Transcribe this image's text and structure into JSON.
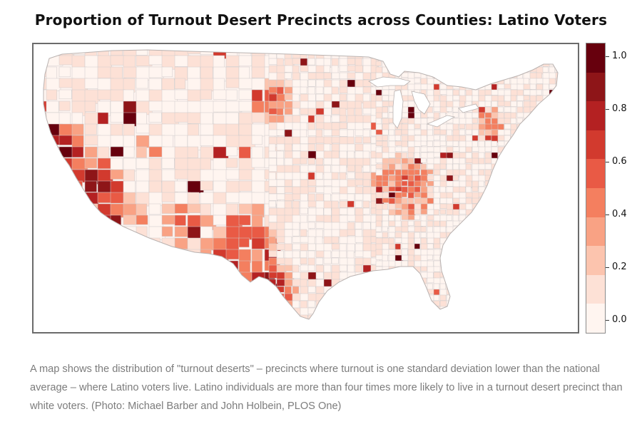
{
  "map": {
    "title": "Proportion of Turnout Desert Precincts across Counties: Latino Voters",
    "subject": "Contiguous United States county choropleth",
    "colors": {
      "frame": "#6b6b6b",
      "county_border": "#d0cccc",
      "no_data": "#fdf0ec"
    }
  },
  "legend": {
    "scale": [
      {
        "label": "0.0",
        "value": 0.0
      },
      {
        "label": "0.2",
        "value": 0.2
      },
      {
        "label": "0.4",
        "value": 0.4
      },
      {
        "label": "0.6",
        "value": 0.6
      },
      {
        "label": "0.8",
        "value": 0.8
      },
      {
        "label": "1.0",
        "value": 1.0
      }
    ],
    "bands": [
      {
        "color": "#fff5f0"
      },
      {
        "color": "#fde1d6"
      },
      {
        "color": "#fcc4ae"
      },
      {
        "color": "#f9a284"
      },
      {
        "color": "#f47f5f"
      },
      {
        "color": "#e95a45"
      },
      {
        "color": "#d23a2e"
      },
      {
        "color": "#b42122"
      },
      {
        "color": "#8e1518"
      },
      {
        "color": "#67000d"
      }
    ]
  },
  "caption": {
    "text": "A map shows the distribution of \"turnout deserts\" – precincts where turnout is one standard deviation lower than the national average – where Latino voters live. Latino individuals are more than four times more likely to live in a turnout desert precinct than white voters. (Photo: Michael Barber and John Holbein, PLOS One)"
  }
}
